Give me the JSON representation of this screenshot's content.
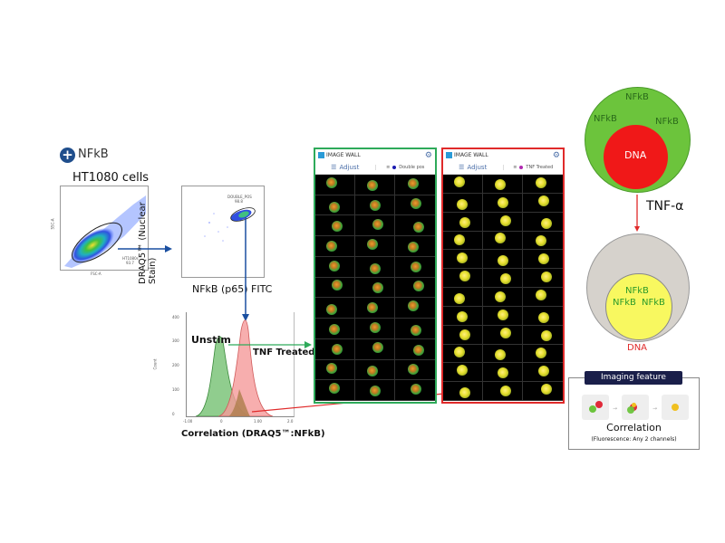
{
  "header": {
    "badge_icon": "plus-icon",
    "badge_label": "NFkB",
    "cell_line": "HT1080 cells"
  },
  "scatter1": {
    "gate_label": "HT1080s",
    "gate_value": "93.7",
    "xlabel": "FSC-A",
    "ylabel": "SSC-A"
  },
  "scatter2": {
    "gate_label": "DOUBLE_POS",
    "gate_value": "98.8",
    "xlabel": "NFkB (p65)  FITC",
    "ylabel": "DRAQ5™ (Nuclear Stain)"
  },
  "histogram": {
    "ylabel": "Count",
    "yticks": [
      "0",
      "100",
      "200",
      "300",
      "400"
    ],
    "xticks": [
      "-1.00",
      "0",
      "1.00",
      "2.0"
    ],
    "xlabel": "Correlation (DRAQ5™:NFkB)",
    "label_unstim": "Unstim",
    "label_treated": "TNF Treated"
  },
  "chart_data": {
    "type": "area",
    "title": "",
    "xlabel": "Correlation (DRAQ5™:NFkB)",
    "ylabel": "Count",
    "xlim": [
      -1.0,
      2.0
    ],
    "ylim": [
      0,
      450
    ],
    "series": [
      {
        "name": "Unstim",
        "color": "#7cc47a",
        "peak_x": -0.1,
        "peak_count": 330
      },
      {
        "name": "TNF Treated",
        "color": "#f59a9a",
        "peak_x": 0.75,
        "peak_count": 400
      }
    ]
  },
  "wall_unstim": {
    "title": "IMAGE WALL",
    "adjust_label": "Adjust",
    "population_label": "Double pos",
    "population_color": "#1a1ab0",
    "border_color": "#2eaa5a",
    "rows": 11,
    "cols": 3
  },
  "wall_treated": {
    "title": "IMAGE WALL",
    "adjust_label": "Adjust",
    "population_label": "TNF Treated",
    "population_color": "#b02ab0",
    "border_color": "#e02a2a",
    "rows": 12,
    "cols": 3
  },
  "diagram": {
    "top_cell": {
      "labels": [
        "NFkB",
        "NFkB",
        "NFkB"
      ],
      "nucleus": "DNA"
    },
    "transition": "TNF-α",
    "bottom_cell": {
      "labels": [
        "NFkB",
        "NFkB",
        "NFkB"
      ],
      "nucleus_caption": "DNA"
    }
  },
  "feature": {
    "header": "Imaging feature",
    "name": "Correlation",
    "subtitle": "(Fluorescence: Any 2 channels)"
  }
}
